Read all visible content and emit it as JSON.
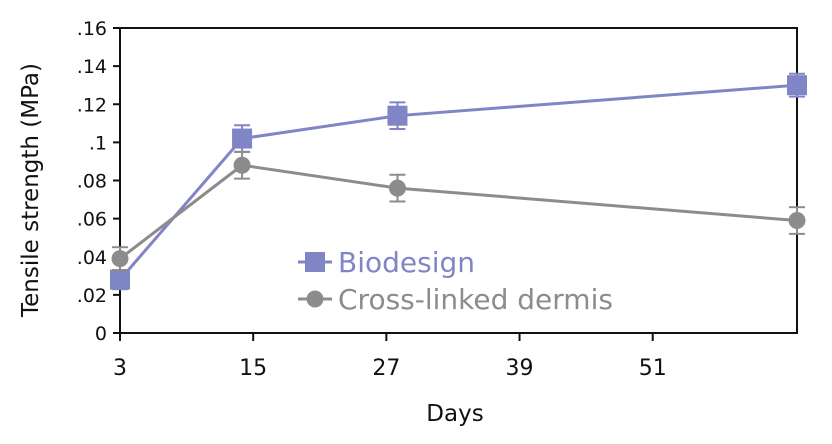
{
  "chart_data": {
    "type": "line",
    "title": "",
    "xlabel": "Days",
    "ylabel": "Tensile strength (MPa)",
    "x_ticks": [
      "3",
      "15",
      "27",
      "39",
      "51"
    ],
    "x_tick_values": [
      3,
      15,
      27,
      39,
      51
    ],
    "y_ticks": [
      "0",
      ".02",
      ".04",
      ".06",
      ".08",
      ".1",
      ".12",
      ".14",
      ".16"
    ],
    "y_tick_values": [
      0,
      0.02,
      0.04,
      0.06,
      0.08,
      0.1,
      0.12,
      0.14,
      0.16
    ],
    "xlim": [
      3,
      64
    ],
    "ylim": [
      0,
      0.16
    ],
    "grid": false,
    "legend_position": "center",
    "series": [
      {
        "name": "Biodesign",
        "color": "#8085c6",
        "marker": "square",
        "x": [
          3,
          14,
          28,
          64
        ],
        "y": [
          0.028,
          0.102,
          0.114,
          0.13
        ],
        "error": [
          0.005,
          0.007,
          0.007,
          0.006
        ]
      },
      {
        "name": "Cross-linked dermis",
        "color": "#8c8c8c",
        "marker": "circle",
        "x": [
          3,
          14,
          28,
          64
        ],
        "y": [
          0.039,
          0.088,
          0.076,
          0.059
        ],
        "error": [
          0.006,
          0.007,
          0.007,
          0.007
        ]
      }
    ]
  }
}
